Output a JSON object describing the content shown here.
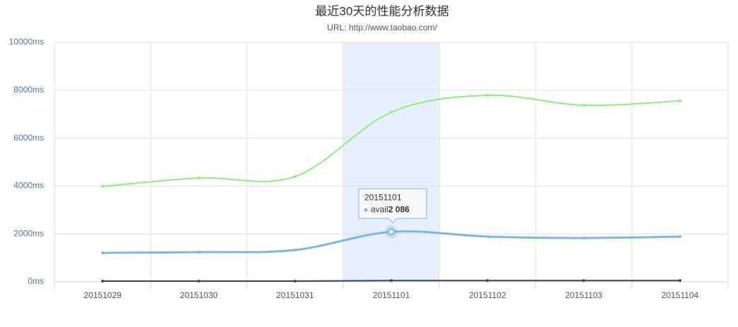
{
  "chart_data": {
    "type": "spline",
    "title": "最近30天的性能分析数据",
    "subtitle": "URL: http://www.taobao.com/",
    "categories": [
      "20151029",
      "20151030",
      "20151031",
      "20151101",
      "20151102",
      "20151103",
      "20151104"
    ],
    "series": [
      {
        "name": "avail",
        "color": "#7cb5ec",
        "values": [
          1209,
          1239,
          1327,
          2086,
          1888,
          1829,
          1888
        ],
        "value_labels": [
          null,
          null,
          null,
          "2 086",
          null,
          null,
          null
        ]
      },
      {
        "color": "#90ed7d",
        "values": [
          3982,
          4336,
          4395,
          7080,
          7788,
          7375,
          7552
        ]
      },
      {
        "color": "#434348",
        "values": [
          30,
          30,
          30,
          50,
          50,
          50,
          50
        ]
      }
    ],
    "ylim": [
      0,
      10000
    ],
    "yticks": [
      {
        "value": 0,
        "label": "0ms"
      },
      {
        "value": 2000,
        "label": "2000ms"
      },
      {
        "value": 4000,
        "label": "4000ms"
      },
      {
        "value": 6000,
        "label": "6000ms"
      },
      {
        "value": 8000,
        "label": "8000ms"
      },
      {
        "value": 10000,
        "label": "10000ms"
      }
    ],
    "grid": true
  }
}
